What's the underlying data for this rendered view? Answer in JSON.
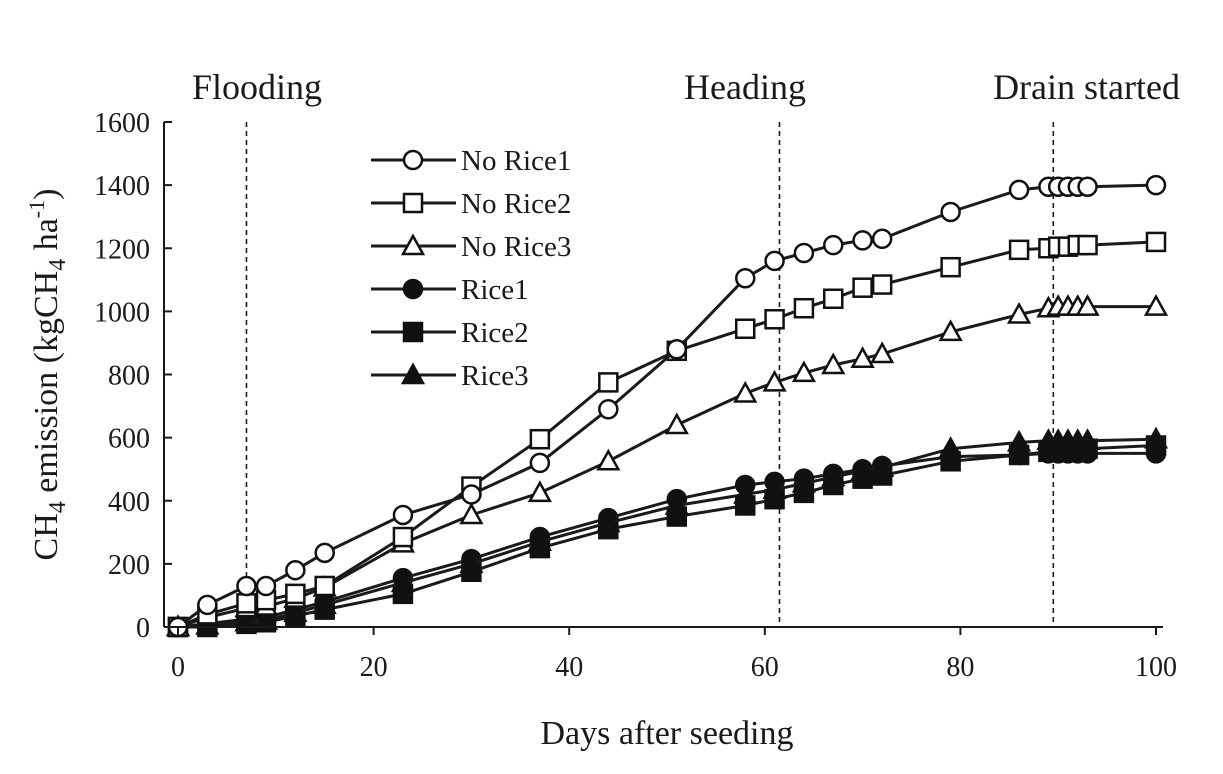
{
  "chart_data": {
    "type": "line",
    "title": "",
    "xlabel": "Days after seeding",
    "ylabel_parts": [
      "CH",
      "4",
      " emission (kgCH",
      "4",
      " ha",
      "-1",
      ")"
    ],
    "xlim": [
      0,
      100
    ],
    "ylim": [
      0,
      1600
    ],
    "xticks": [
      0,
      20,
      40,
      60,
      80,
      100
    ],
    "yticks": [
      0,
      200,
      400,
      600,
      800,
      1000,
      1200,
      1400,
      1600
    ],
    "grid": false,
    "legend_position": "top-left-center",
    "events": [
      {
        "label": "Flooding",
        "x": 7
      },
      {
        "label": "Heading",
        "x": 61.5
      },
      {
        "label": "Drain started",
        "x": 89.5
      }
    ],
    "x": [
      0,
      3,
      7,
      9,
      12,
      15,
      23,
      30,
      37,
      44,
      51,
      58,
      61,
      64,
      67,
      70,
      72,
      79,
      86,
      89,
      90,
      91,
      92,
      93,
      100
    ],
    "series": [
      {
        "name": "No Rice1",
        "marker": "circle-open",
        "values": [
          0,
          70,
          130,
          130,
          180,
          235,
          355,
          420,
          520,
          690,
          880,
          1105,
          1160,
          1185,
          1210,
          1225,
          1230,
          1315,
          1385,
          1395,
          1395,
          1395,
          1395,
          1395,
          1400
        ]
      },
      {
        "name": "No Rice2",
        "marker": "square-open",
        "values": [
          0,
          40,
          75,
          85,
          105,
          130,
          285,
          445,
          595,
          775,
          875,
          945,
          975,
          1010,
          1040,
          1075,
          1085,
          1140,
          1195,
          1200,
          1205,
          1205,
          1210,
          1210,
          1220
        ]
      },
      {
        "name": "No Rice3",
        "marker": "triangle-open",
        "values": [
          0,
          30,
          60,
          65,
          90,
          125,
          265,
          355,
          425,
          525,
          640,
          740,
          775,
          805,
          830,
          850,
          865,
          935,
          990,
          1010,
          1015,
          1015,
          1015,
          1015,
          1015
        ]
      },
      {
        "name": "Rice1",
        "marker": "circle-filled",
        "values": [
          0,
          10,
          25,
          30,
          55,
          80,
          155,
          215,
          285,
          345,
          405,
          450,
          460,
          470,
          485,
          500,
          510,
          540,
          545,
          550,
          550,
          550,
          550,
          550,
          550
        ]
      },
      {
        "name": "Rice2",
        "marker": "square-filled",
        "values": [
          0,
          0,
          10,
          15,
          35,
          55,
          105,
          175,
          250,
          310,
          350,
          385,
          405,
          425,
          450,
          470,
          480,
          525,
          545,
          555,
          560,
          560,
          565,
          565,
          575
        ]
      },
      {
        "name": "Rice3",
        "marker": "triangle-filled",
        "values": [
          0,
          5,
          15,
          20,
          45,
          70,
          140,
          200,
          270,
          330,
          385,
          420,
          435,
          455,
          475,
          495,
          505,
          565,
          585,
          590,
          590,
          590,
          590,
          590,
          595
        ]
      }
    ]
  }
}
